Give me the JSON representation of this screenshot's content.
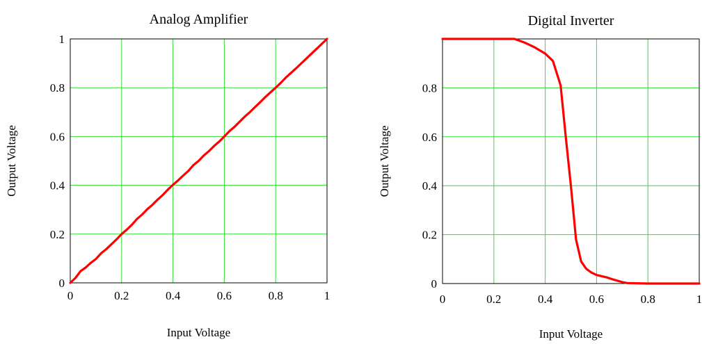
{
  "chart_data": [
    {
      "type": "line",
      "title": "Analog Amplifier",
      "xlabel": "Input Voltage",
      "ylabel": "Output Voltage",
      "xlim": [
        0,
        1
      ],
      "ylim": [
        0,
        1
      ],
      "grid": true,
      "colors": {
        "line": "#ff0000",
        "grid": "#33dd33",
        "frame": "#000000"
      },
      "x_ticks": [
        0,
        0.2,
        0.4,
        0.6,
        0.8,
        1
      ],
      "x_tick_labels": [
        "0",
        "0.2",
        "0.4",
        "0.6",
        "0.8",
        "1"
      ],
      "y_ticks": [
        0,
        0.2,
        0.4,
        0.6,
        0.8,
        1
      ],
      "y_tick_labels": [
        "0",
        "0.2",
        "0.4",
        "0.6",
        "0.8",
        "1"
      ],
      "series": [
        {
          "x": [
            0,
            0.02,
            0.04,
            0.06,
            0.08,
            0.1,
            0.12,
            0.14,
            0.16,
            0.18,
            0.2,
            0.22,
            0.24,
            0.26,
            0.28,
            0.3,
            0.32,
            0.34,
            0.36,
            0.38,
            0.4,
            0.42,
            0.44,
            0.46,
            0.48,
            0.5,
            0.52,
            0.54,
            0.56,
            0.58,
            0.6,
            0.62,
            0.64,
            0.66,
            0.68,
            0.7,
            0.72,
            0.74,
            0.76,
            0.78,
            0.8,
            0.82,
            0.84,
            0.86,
            0.88,
            0.9,
            0.92,
            0.94,
            0.96,
            0.98,
            1
          ],
          "y": [
            0,
            0.02,
            0.048,
            0.063,
            0.082,
            0.098,
            0.121,
            0.138,
            0.158,
            0.178,
            0.2,
            0.218,
            0.238,
            0.262,
            0.28,
            0.302,
            0.32,
            0.341,
            0.36,
            0.382,
            0.402,
            0.42,
            0.44,
            0.459,
            0.483,
            0.5,
            0.522,
            0.54,
            0.561,
            0.579,
            0.6,
            0.622,
            0.64,
            0.661,
            0.682,
            0.7,
            0.721,
            0.741,
            0.762,
            0.781,
            0.8,
            0.82,
            0.842,
            0.861,
            0.88,
            0.9,
            0.92,
            0.94,
            0.96,
            0.98,
            1
          ]
        }
      ]
    },
    {
      "type": "line",
      "title": "Digital Inverter",
      "xlabel": "Input Voltage",
      "ylabel": "Output Voltage",
      "xlim": [
        0,
        1
      ],
      "ylim": [
        0,
        1
      ],
      "grid": true,
      "colors": {
        "line": "#ff0000",
        "grid": "#33dd33",
        "frame": "#000000"
      },
      "x_ticks": [
        0,
        0.2,
        0.4,
        0.6,
        0.8,
        1
      ],
      "x_tick_labels": [
        "0",
        "0.2",
        "0.4",
        "0.6",
        "0.8",
        "1"
      ],
      "y_ticks": [
        0,
        0.2,
        0.4,
        0.6,
        0.8
      ],
      "y_tick_labels": [
        "0",
        "0.2",
        "0.4",
        "0.6",
        "0.8"
      ],
      "series": [
        {
          "x": [
            0,
            0.1,
            0.2,
            0.28,
            0.32,
            0.36,
            0.4,
            0.43,
            0.46,
            0.48,
            0.5,
            0.52,
            0.54,
            0.56,
            0.58,
            0.6,
            0.62,
            0.64,
            0.66,
            0.68,
            0.7,
            0.72,
            0.8,
            0.9,
            1
          ],
          "y": [
            1,
            1,
            1,
            1,
            0.985,
            0.965,
            0.94,
            0.91,
            0.81,
            0.6,
            0.4,
            0.18,
            0.09,
            0.06,
            0.045,
            0.035,
            0.03,
            0.025,
            0.018,
            0.012,
            0.006,
            0.002,
            0,
            0,
            0
          ]
        }
      ]
    }
  ]
}
